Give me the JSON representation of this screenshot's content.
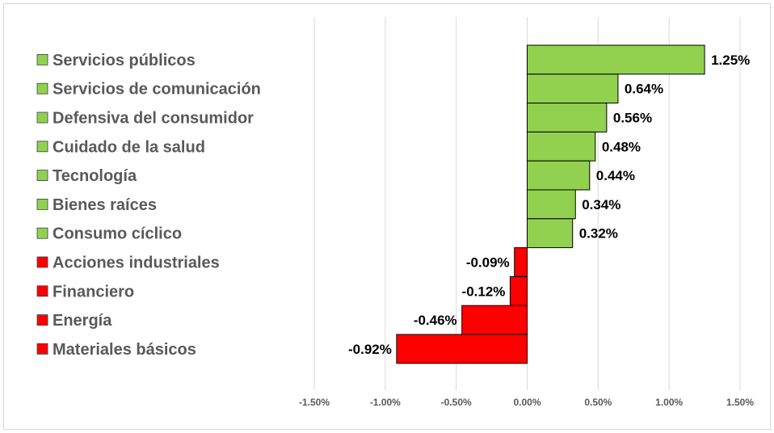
{
  "chart_data": {
    "type": "bar",
    "orientation": "horizontal",
    "categories": [
      "Servicios públicos",
      "Servicios de comunicación",
      "Defensiva del consumidor",
      "Cuidado de la salud",
      "Tecnología",
      "Bienes raíces",
      "Consumo cíclico",
      "Acciones industriales",
      "Financiero",
      "Energía",
      "Materiales básicos"
    ],
    "values": [
      1.25,
      0.64,
      0.56,
      0.48,
      0.44,
      0.34,
      0.32,
      -0.09,
      -0.12,
      -0.46,
      -0.92
    ],
    "data_labels": [
      "1.25%",
      "0.64%",
      "0.56%",
      "0.48%",
      "0.44%",
      "0.34%",
      "0.32%",
      "-0.09%",
      "-0.12%",
      "-0.46%",
      "-0.92%"
    ],
    "xlim": [
      -1.5,
      1.5
    ],
    "x_ticks": [
      -1.5,
      -1.0,
      -0.5,
      0.0,
      0.5,
      1.0,
      1.5
    ],
    "x_tick_labels": [
      "-1.50%",
      "-1.00%",
      "-0.50%",
      "0.00%",
      "0.50%",
      "1.00%",
      "1.50%"
    ],
    "title": "",
    "xlabel": "",
    "ylabel": "",
    "grid": "vertical",
    "legend": "left",
    "colors": {
      "positive": "#92d050",
      "negative": "#ff0000",
      "grid": "#d9d9d9",
      "label": "#595959"
    }
  }
}
